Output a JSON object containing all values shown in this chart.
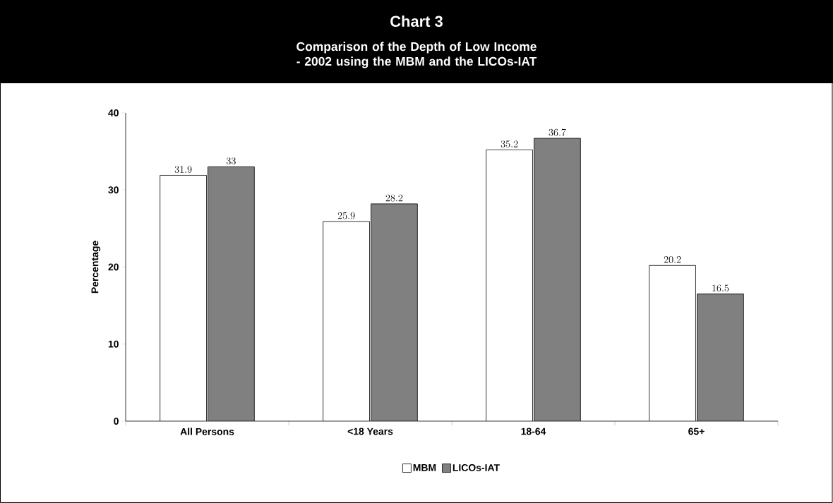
{
  "chart_data": {
    "type": "bar",
    "title": "Chart 3",
    "subtitle": "Comparison of the Depth of Low Income - 2002 using the MBM and the LICOs-IAT",
    "ylabel": "Percentage",
    "categories": [
      "All Persons",
      "<18 Years",
      "18-64",
      "65+"
    ],
    "series": [
      {
        "name": "MBM",
        "color": "#ffffff",
        "values": [
          31.9,
          25.9,
          35.2,
          20.2
        ]
      },
      {
        "name": "LICOs-IAT",
        "color": "#808080",
        "values": [
          33,
          28.2,
          36.7,
          16.5
        ]
      }
    ],
    "ylim": [
      0,
      40
    ],
    "yticks": [
      0,
      10,
      20,
      30,
      40
    ],
    "grid": false,
    "legend": "bottom",
    "data_labels": true
  }
}
